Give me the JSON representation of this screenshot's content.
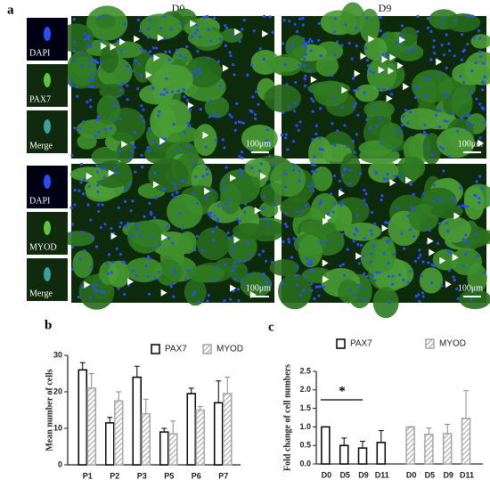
{
  "panel_a": {
    "label": "a",
    "columns": [
      "D0",
      "D9"
    ],
    "insets_top": [
      "DAPI",
      "PAX7",
      "Merge"
    ],
    "insets_bottom": [
      "DAPI",
      "MYOD",
      "Merge"
    ],
    "scale_bar": "100μm"
  },
  "chart_data": [
    {
      "type": "bar",
      "panel": "b",
      "ylabel": "Mean number of cells",
      "categories": [
        "P1",
        "P2",
        "P3",
        "P5",
        "P6",
        "P7"
      ],
      "series": [
        {
          "name": "PAX7",
          "color": "#ffffff",
          "values": [
            26,
            11.5,
            24,
            9,
            19.5,
            17
          ],
          "errors": [
            2,
            1.5,
            3,
            1,
            1.5,
            6
          ]
        },
        {
          "name": "MYOD",
          "color": "#a6a6a6",
          "pattern": "hatch",
          "values": [
            21,
            17.5,
            14,
            8.5,
            15,
            19.5
          ],
          "errors": [
            4,
            2.5,
            4,
            3.5,
            1,
            4.5
          ]
        }
      ],
      "ylim": [
        0,
        30
      ],
      "yticks": [
        0,
        10,
        20,
        30
      ]
    },
    {
      "type": "bar",
      "panel": "c",
      "ylabel": "Fold change of cell numbers",
      "categories": [
        "D0",
        "D5",
        "D9",
        "D11",
        "D0",
        "D5",
        "D9",
        "D11"
      ],
      "series": [
        {
          "name": "PAX7",
          "color": "#ffffff",
          "values": [
            1,
            0.5,
            0.43,
            0.58,
            null,
            null,
            null,
            null
          ],
          "errors": [
            0,
            0.2,
            0.18,
            0.32,
            null,
            null,
            null,
            null
          ]
        },
        {
          "name": "MYOD",
          "color": "#a6a6a6",
          "pattern": "hatch",
          "values": [
            null,
            null,
            null,
            null,
            1,
            0.8,
            0.82,
            1.23
          ],
          "errors": [
            null,
            null,
            null,
            null,
            0,
            0.17,
            0.25,
            0.75
          ]
        }
      ],
      "ylim": [
        0,
        2.5
      ],
      "yticks": [
        {
          "value": 0,
          "label": "0.0"
        },
        0.5,
        {
          "value": 1,
          "label": "1.0"
        },
        1.5,
        {
          "value": 2,
          "label": "2.0"
        },
        2.5
      ],
      "annotation": "*"
    }
  ]
}
